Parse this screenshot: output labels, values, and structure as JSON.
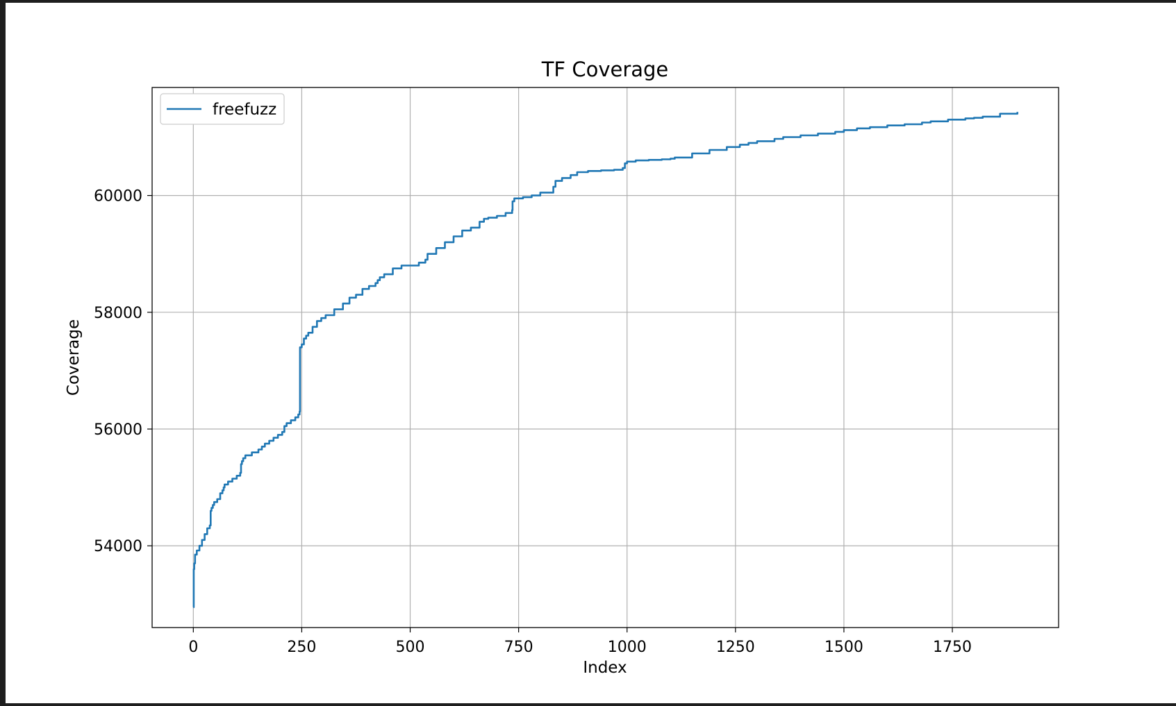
{
  "chart_data": {
    "type": "line",
    "title": "TF Coverage",
    "xlabel": "Index",
    "ylabel": "Coverage",
    "xlim": [
      -95,
      1995
    ],
    "ylim": [
      52600,
      61850
    ],
    "xticks": [
      0,
      250,
      500,
      750,
      1000,
      1250,
      1500,
      1750
    ],
    "yticks": [
      54000,
      56000,
      58000,
      60000
    ],
    "grid": true,
    "legend_position": "top-left",
    "colors": {
      "line": "#1f77b4",
      "grid": "#b0b0b0"
    },
    "series": [
      {
        "name": "freefuzz",
        "x": [
          0,
          1,
          2,
          4,
          8,
          14,
          20,
          26,
          32,
          38,
          40,
          42,
          45,
          48,
          55,
          62,
          67,
          70,
          72,
          80,
          90,
          100,
          108,
          110,
          112,
          115,
          120,
          135,
          150,
          158,
          165,
          175,
          185,
          195,
          205,
          210,
          215,
          225,
          235,
          242,
          245,
          246,
          250,
          255,
          260,
          265,
          275,
          285,
          295,
          305,
          325,
          345,
          360,
          375,
          390,
          405,
          420,
          425,
          430,
          440,
          460,
          480,
          500,
          520,
          535,
          540,
          560,
          580,
          600,
          620,
          640,
          660,
          670,
          680,
          700,
          720,
          735,
          736,
          740,
          760,
          780,
          800,
          830,
          835,
          850,
          870,
          885,
          910,
          940,
          970,
          990,
          995,
          1000,
          1020,
          1050,
          1080,
          1100,
          1110,
          1150,
          1190,
          1230,
          1260,
          1280,
          1300,
          1340,
          1360,
          1400,
          1440,
          1480,
          1500,
          1530,
          1560,
          1600,
          1640,
          1680,
          1700,
          1740,
          1780,
          1800,
          1820,
          1860,
          1900
        ],
        "values": [
          52950,
          53600,
          53700,
          53850,
          53920,
          54000,
          54100,
          54200,
          54300,
          54350,
          54600,
          54650,
          54700,
          54750,
          54800,
          54900,
          54950,
          55000,
          55050,
          55100,
          55150,
          55200,
          55250,
          55400,
          55450,
          55500,
          55550,
          55600,
          55650,
          55700,
          55750,
          55800,
          55850,
          55900,
          55950,
          56050,
          56100,
          56150,
          56200,
          56250,
          56300,
          57400,
          57450,
          57550,
          57600,
          57650,
          57750,
          57850,
          57900,
          57950,
          58050,
          58150,
          58250,
          58300,
          58400,
          58450,
          58500,
          58550,
          58600,
          58650,
          58750,
          58800,
          58800,
          58850,
          58900,
          59000,
          59100,
          59200,
          59300,
          59400,
          59450,
          59550,
          59600,
          59620,
          59650,
          59700,
          59750,
          59900,
          59950,
          59970,
          60000,
          60050,
          60150,
          60250,
          60300,
          60350,
          60400,
          60420,
          60430,
          60440,
          60470,
          60550,
          60580,
          60600,
          60610,
          60620,
          60630,
          60650,
          60720,
          60780,
          60830,
          60870,
          60900,
          60930,
          60970,
          61000,
          61030,
          61060,
          61090,
          61120,
          61150,
          61170,
          61200,
          61220,
          61250,
          61270,
          61300,
          61320,
          61330,
          61350,
          61400,
          61430
        ]
      }
    ]
  }
}
